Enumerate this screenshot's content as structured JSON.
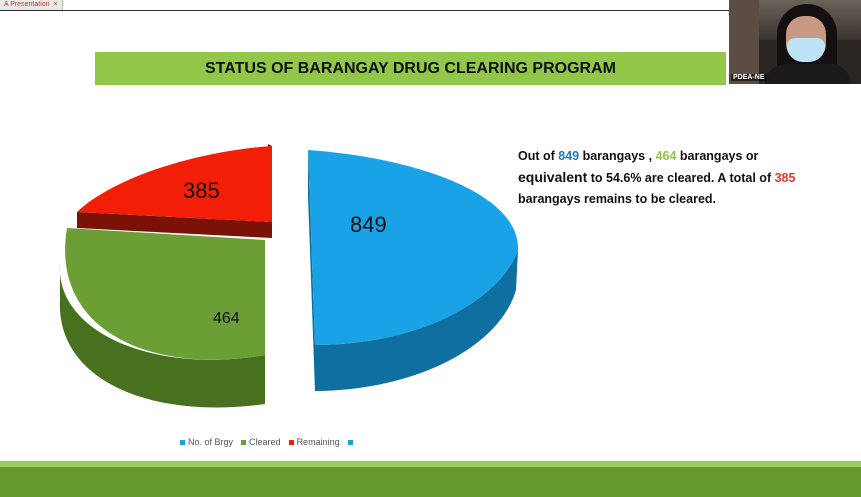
{
  "tab": {
    "label": "A Presentation",
    "close": "×"
  },
  "title": "STATUS OF BARANGAY DRUG CLEARING PROGRAM",
  "video": {
    "participant": "PDEA-NE"
  },
  "caption": {
    "t1": "Out of ",
    "n1": "849",
    "t2": " barangays , ",
    "n2": "464",
    "t3": " barangays or ",
    "t4": "equivalent",
    "t5": " to 54.6% are cleared.  A total of ",
    "n3": "385",
    "t6": " barangays remains to be cleared."
  },
  "chart_data": {
    "type": "pie",
    "title": "",
    "slices": [
      {
        "label": "No. of Brgy",
        "value": 849,
        "color": "#19a3e6",
        "side": "#0e6fa0"
      },
      {
        "label": "Cleared",
        "value": 464,
        "color": "#6c9e36",
        "side": "#47701f"
      },
      {
        "label": "Remaining",
        "value": 385,
        "color": "#f21e06",
        "side": "#7a1208"
      }
    ],
    "legend": [
      "No. of Brgy",
      "Cleared",
      "Remaining",
      ""
    ],
    "legend_colors": [
      "#19a3e6",
      "#6c9e36",
      "#f21e06",
      "#19a3e6"
    ],
    "data_labels": [
      "849",
      "464",
      "385"
    ],
    "legend_position": "bottom"
  }
}
